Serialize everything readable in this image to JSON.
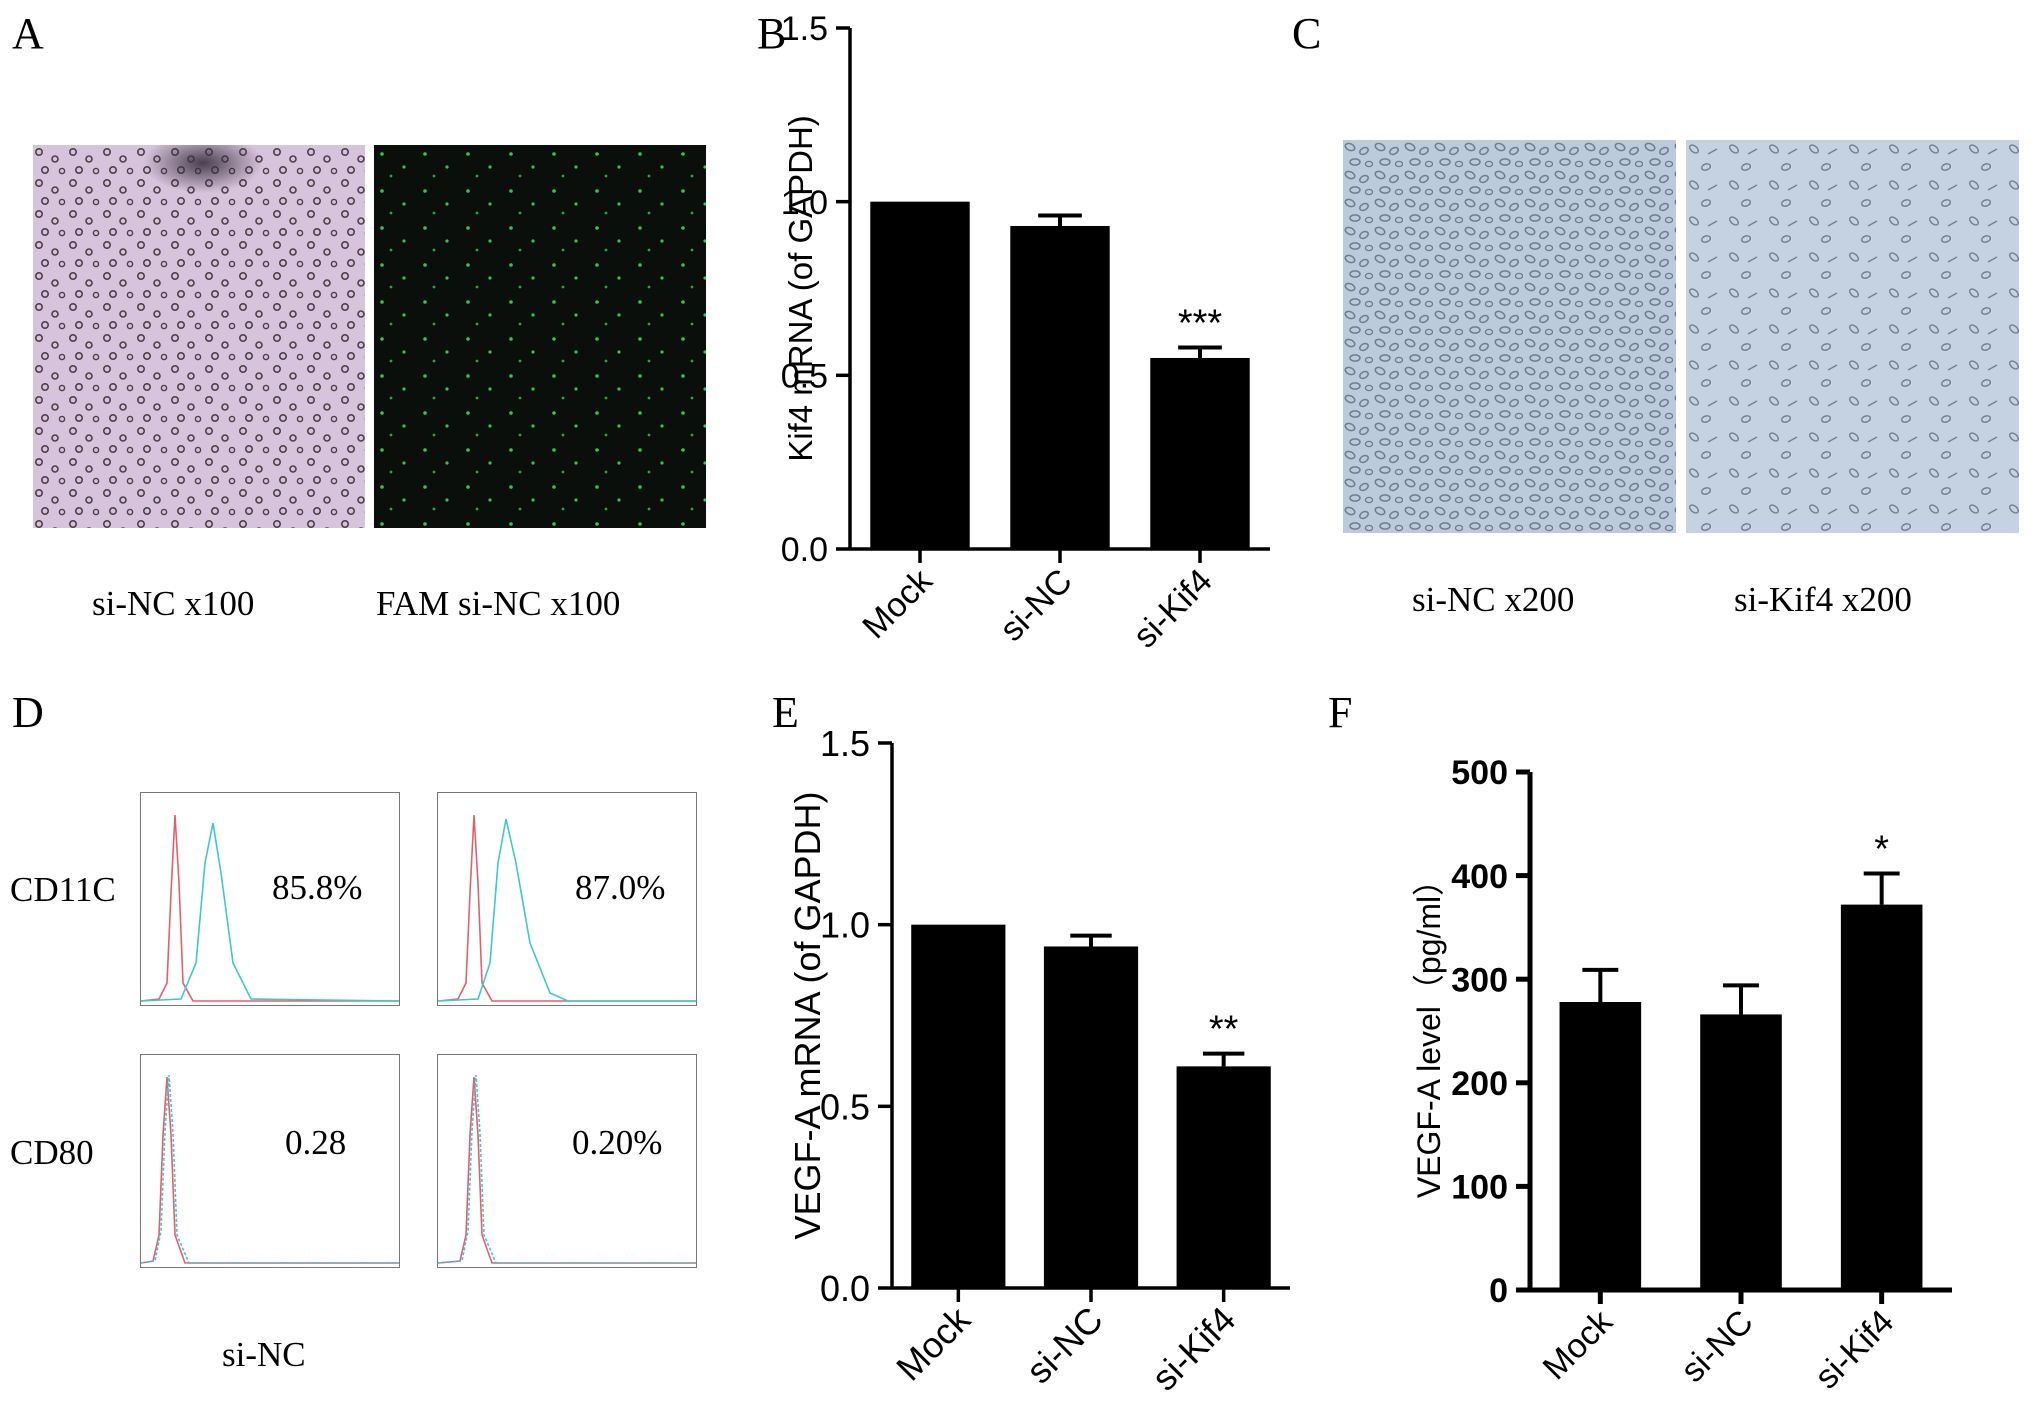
{
  "panels": {
    "A": {
      "letter": "A",
      "captions": [
        "si-NC x100",
        "FAM si-NC x100"
      ],
      "images": [
        "brightfield-transfected-cells",
        "fam-fluorescence-cells"
      ]
    },
    "B": {
      "letter": "B",
      "chart_data": {
        "type": "bar",
        "categories": [
          "Mock",
          "si-NC",
          "si-Kif4"
        ],
        "values": [
          1.0,
          0.93,
          0.55
        ],
        "errors": [
          0.0,
          0.03,
          0.03
        ],
        "ylabel": "Kif4 mRNA (of GAPDH)",
        "ylim": [
          0,
          1.5
        ],
        "yticks": [
          "0.0",
          "0.5",
          "1.0",
          "1.5"
        ],
        "significance": [
          "",
          "",
          "***"
        ]
      }
    },
    "C": {
      "letter": "C",
      "captions": [
        "si-NC x200",
        "si-Kif4 x200"
      ],
      "images": [
        "si-nc-micrograph",
        "si-kif4-micrograph"
      ]
    },
    "D": {
      "letter": "D",
      "row_labels": [
        "CD11C",
        "CD80"
      ],
      "values": [
        [
          "85.8%",
          "87.0%"
        ],
        [
          "0.28",
          "0.20%"
        ]
      ],
      "caption": "si-NC",
      "colors": {
        "control": "#e06070",
        "stain": "#40c8c8"
      }
    },
    "E": {
      "letter": "E",
      "chart_data": {
        "type": "bar",
        "categories": [
          "Mock",
          "si-NC",
          "si-Kif4"
        ],
        "values": [
          1.0,
          0.94,
          0.61
        ],
        "errors": [
          0.0,
          0.03,
          0.035
        ],
        "ylabel": "VEGF-A mRNA (of GAPDH)",
        "ylim": [
          0,
          1.5
        ],
        "yticks": [
          "0.0",
          "0.5",
          "1.0",
          "1.5"
        ],
        "significance": [
          "",
          "",
          "**"
        ]
      }
    },
    "F": {
      "letter": "F",
      "chart_data": {
        "type": "bar",
        "categories": [
          "Mock",
          "si-NC",
          "si-Kif4"
        ],
        "values": [
          278,
          266,
          372
        ],
        "errors": [
          31,
          28,
          30
        ],
        "ylabel": "VEGF-A level（pg/ml）",
        "ylim": [
          0,
          500
        ],
        "yticks": [
          "0",
          "100",
          "200",
          "300",
          "400",
          "500"
        ],
        "significance": [
          "",
          "",
          "*"
        ]
      }
    }
  }
}
